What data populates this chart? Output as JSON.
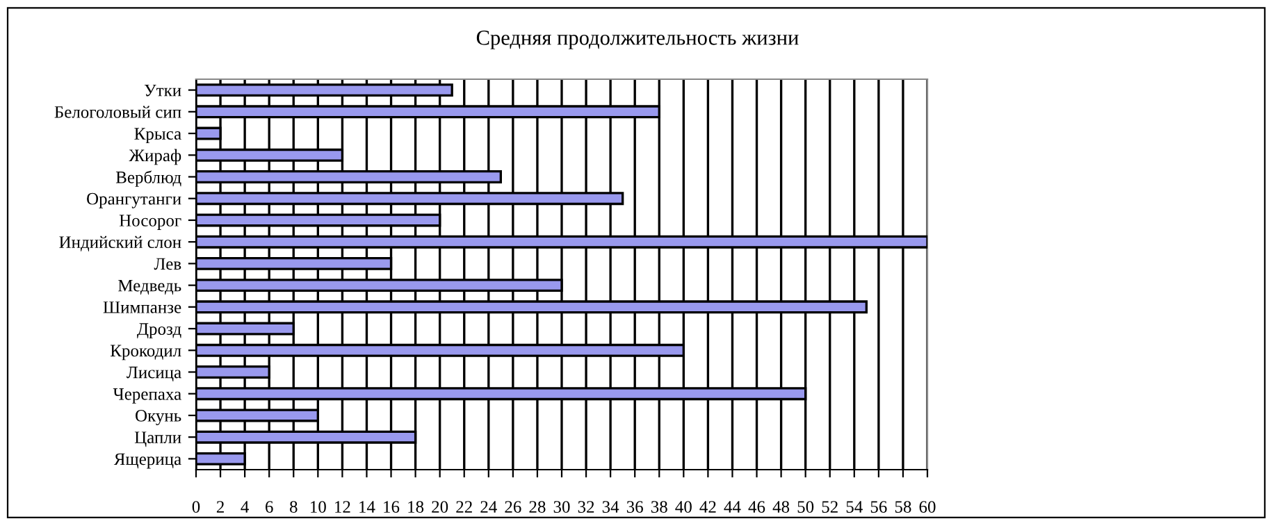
{
  "chart_data": {
    "type": "bar",
    "orientation": "horizontal",
    "title": "Средняя продолжительность жизни",
    "categories": [
      "Утки",
      "Белоголовый сип",
      "Крыса",
      "Жираф",
      "Верблюд",
      "Орангутанги",
      "Носорог",
      "Индийский слон",
      "Лев",
      "Медведь",
      "Шимпанзе",
      "Дрозд",
      "Крокодил",
      "Лисица",
      "Черепаха",
      "Окунь",
      "Цапли",
      "Ящерица"
    ],
    "values": [
      21,
      38,
      2,
      12,
      25,
      35,
      20,
      60,
      16,
      30,
      55,
      8,
      40,
      6,
      50,
      10,
      18,
      4
    ],
    "color": "#9999ee",
    "xlim": [
      0,
      60
    ],
    "xticks": [
      0,
      2,
      4,
      6,
      8,
      10,
      12,
      14,
      16,
      18,
      20,
      22,
      24,
      26,
      28,
      30,
      32,
      34,
      36,
      38,
      40,
      42,
      44,
      46,
      48,
      50,
      52,
      54,
      56,
      58,
      60
    ],
    "grid": "x"
  }
}
